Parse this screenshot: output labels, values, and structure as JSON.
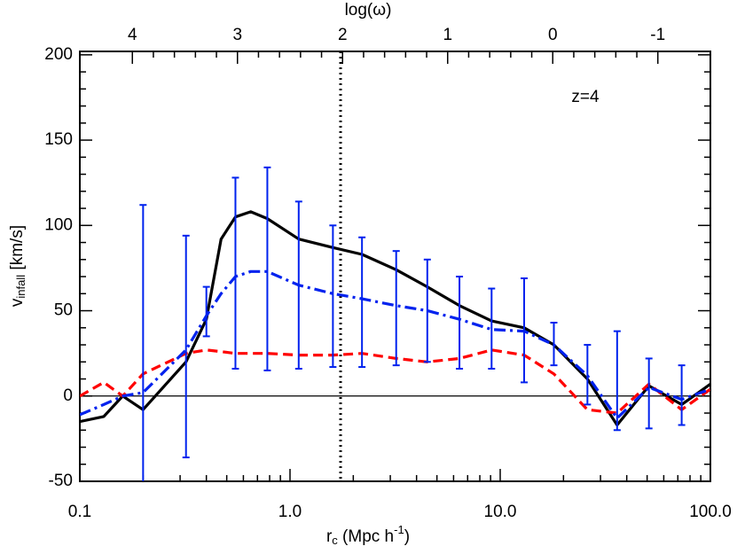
{
  "chart_data": {
    "type": "line",
    "xlabel": [
      "r",
      "c",
      " (Mpc  h",
      "-1",
      ")"
    ],
    "ylabel": [
      "v",
      "infall",
      " [km/s]"
    ],
    "x2label": "log(ω)",
    "annotation": "z=4",
    "xscale": "log",
    "xlim": [
      0.1,
      100
    ],
    "xticks": [
      0.1,
      {
        "value": 1,
        "label": "1.0"
      },
      {
        "value": 10,
        "label": "10.0"
      },
      {
        "value": 100,
        "label": "100.0"
      }
    ],
    "ylim": [
      -50,
      202
    ],
    "yticks": [
      -50,
      0,
      50,
      100,
      150,
      200
    ],
    "x2lim": [
      4.5,
      -1.5
    ],
    "x2ticks": [
      4,
      3,
      2,
      1,
      0,
      -1
    ],
    "vline": 1.74,
    "hline": 0,
    "x": [
      0.1,
      0.13,
      0.16,
      0.2,
      0.32,
      0.4,
      0.47,
      0.55,
      0.65,
      0.78,
      1.1,
      1.6,
      2.2,
      3.2,
      4.5,
      6.4,
      9.1,
      13,
      18,
      26,
      36,
      51,
      73,
      100
    ],
    "series": [
      {
        "color": "#000000",
        "style": "solid",
        "values": [
          -15,
          -12,
          0,
          -8,
          20,
          45,
          92,
          105,
          108,
          104,
          92,
          87,
          83,
          74,
          64,
          53,
          44,
          40,
          30,
          10,
          -17,
          6,
          -5,
          7
        ]
      },
      {
        "color": "#ff0000",
        "style": "dashed",
        "values": [
          0,
          8,
          0,
          13,
          25,
          27,
          26,
          25,
          25,
          25,
          24,
          24,
          25,
          22,
          20,
          22,
          27,
          24,
          13,
          -8,
          -10,
          7,
          -8,
          4
        ]
      },
      {
        "color": "#0022ee",
        "style": "dashdot",
        "values": [
          -11,
          -5,
          0,
          2,
          27,
          47,
          60,
          70,
          73,
          73,
          65,
          60,
          57,
          53,
          50,
          45,
          39,
          38,
          30,
          12,
          -13,
          5,
          -2,
          4
        ],
        "error_lower": [
          null,
          null,
          null,
          62,
          63,
          12,
          null,
          54,
          null,
          58,
          49,
          43,
          40,
          35,
          30,
          29,
          23,
          30,
          12,
          17,
          7,
          24,
          15,
          null
        ],
        "error_upper": [
          null,
          null,
          null,
          110,
          67,
          17,
          null,
          58,
          null,
          61,
          49,
          40,
          36,
          32,
          30,
          25,
          24,
          31,
          13,
          18,
          51,
          17,
          20,
          null
        ]
      }
    ]
  }
}
